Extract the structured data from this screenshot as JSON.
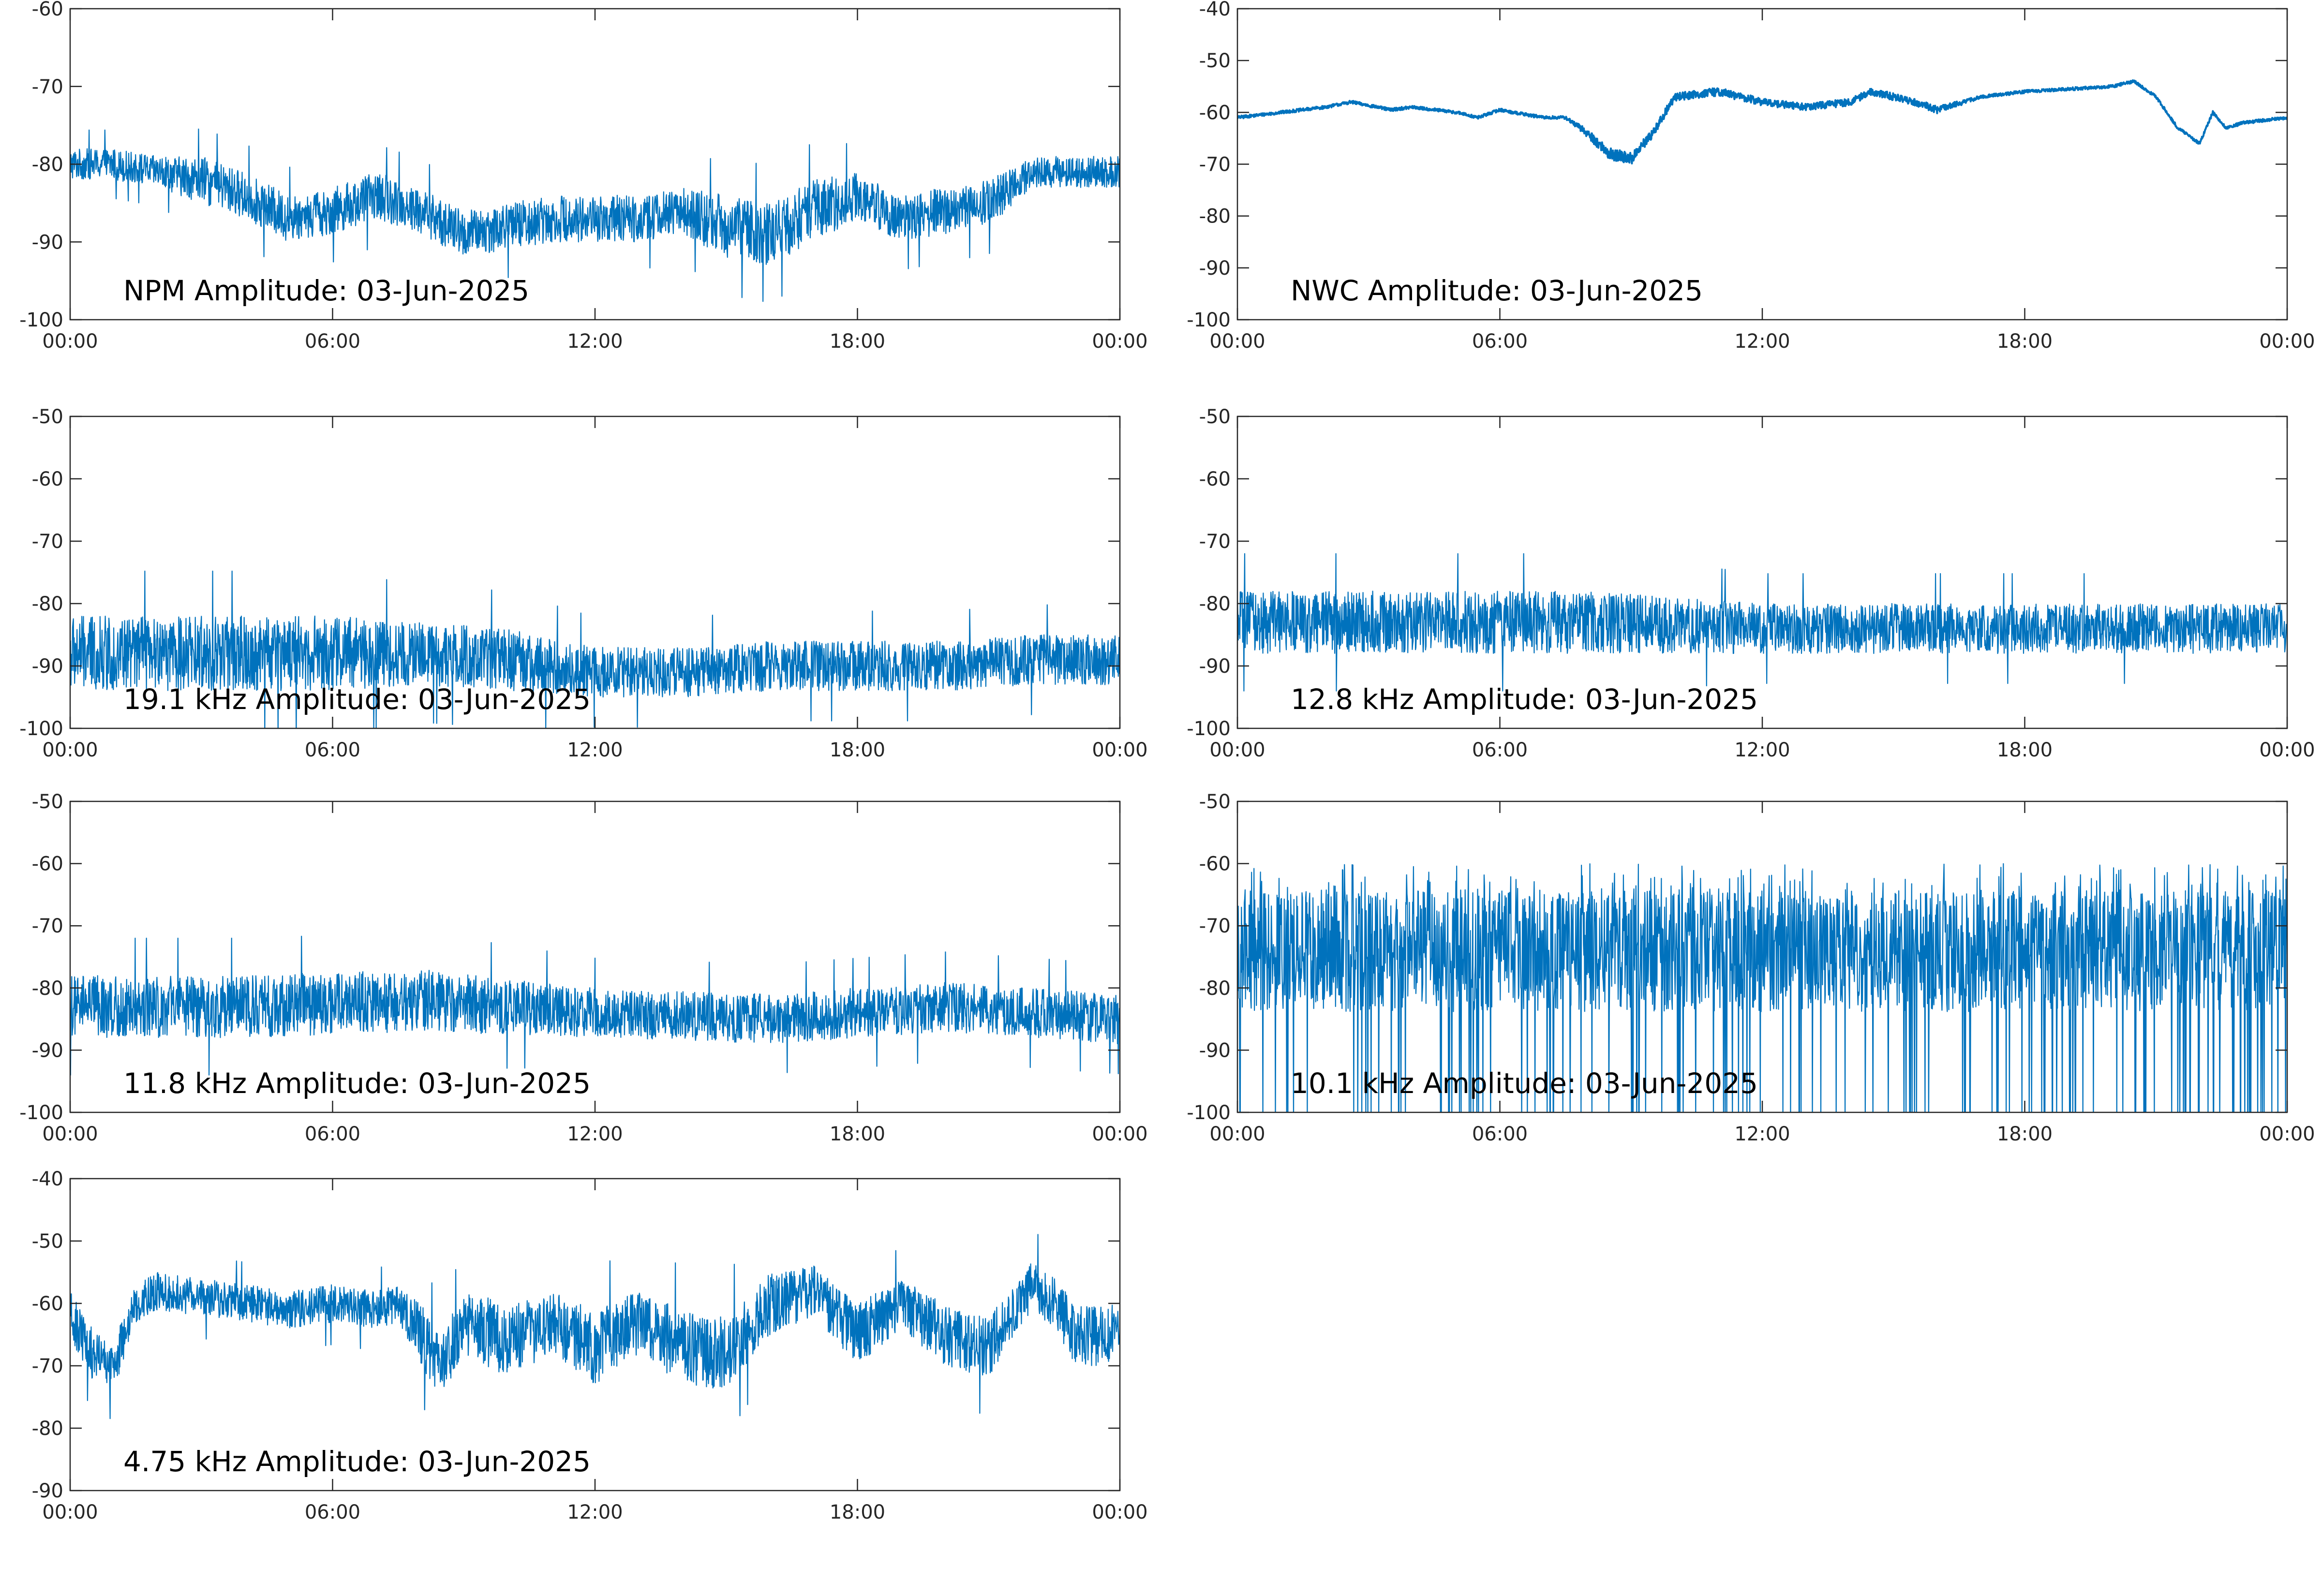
{
  "figure": {
    "line_color": "#0072bd",
    "axis_color": "#262626",
    "background": "#ffffff"
  },
  "chart_data": [
    {
      "type": "line",
      "title": "NPM Amplitude: 03-Jun-2025",
      "ylim": [
        -100,
        -60
      ],
      "yticks": [
        "-100",
        "-90",
        "-80",
        "-70",
        "-60"
      ],
      "xlim": [
        "00:00",
        "24:00"
      ],
      "xticks": [
        "00:00",
        "06:00",
        "12:00",
        "18:00",
        "00:00"
      ],
      "grid": false,
      "series": [
        {
          "style": "dense noisy band",
          "color": "#0072bd",
          "x": [
            0,
            1,
            2,
            3,
            4,
            5,
            6,
            7,
            8,
            9,
            10,
            11,
            12,
            13,
            14,
            15,
            16,
            17,
            18,
            19,
            20,
            21,
            22,
            23,
            24
          ],
          "center": [
            -80,
            -80,
            -81,
            -82,
            -84,
            -87,
            -86,
            -84,
            -86,
            -89,
            -88,
            -87,
            -87,
            -87,
            -86,
            -88,
            -89,
            -86,
            -84,
            -87,
            -86,
            -85,
            -81,
            -81,
            -81
          ],
          "spread": [
            2,
            2,
            2,
            3,
            3,
            3,
            3,
            3,
            3,
            3,
            3,
            3,
            3,
            3,
            3,
            4,
            4,
            4,
            3,
            3,
            3,
            3,
            2,
            2,
            2
          ]
        }
      ]
    },
    {
      "type": "line",
      "title": "NWC Amplitude: 03-Jun-2025",
      "ylim": [
        -100,
        -40
      ],
      "yticks": [
        "-100",
        "-90",
        "-80",
        "-70",
        "-60",
        "-50",
        "-40"
      ],
      "xlim": [
        "00:00",
        "24:00"
      ],
      "xticks": [
        "00:00",
        "06:00",
        "12:00",
        "18:00",
        "00:00"
      ],
      "grid": false,
      "series": [
        {
          "style": "thin line",
          "color": "#0072bd",
          "x": [
            0,
            1,
            2,
            2.6,
            3.5,
            4,
            5,
            5.5,
            6,
            6.3,
            7,
            7.5,
            8,
            8.5,
            9,
            9.5,
            10,
            11,
            12,
            13,
            14,
            14.5,
            15,
            15.5,
            16,
            17,
            18,
            19,
            20,
            20.5,
            21,
            21.5,
            22,
            22.3,
            22.6,
            23,
            24
          ],
          "center": [
            -61,
            -60,
            -59,
            -58,
            -59.5,
            -59,
            -60,
            -61,
            -59.5,
            -60,
            -61,
            -61,
            -64,
            -68,
            -69,
            -64,
            -57,
            -56,
            -58,
            -59,
            -58,
            -56,
            -57,
            -58,
            -59.5,
            -57,
            -56,
            -55.5,
            -55,
            -54,
            -57,
            -63,
            -66,
            -60,
            -63,
            -62,
            -61
          ],
          "spread": [
            0.3,
            0.3,
            0.3,
            0.3,
            0.3,
            0.3,
            0.3,
            0.3,
            0.3,
            0.3,
            0.3,
            0.3,
            0.8,
            1.2,
            1.2,
            0.8,
            0.8,
            0.8,
            0.7,
            0.7,
            0.7,
            0.7,
            0.7,
            0.7,
            0.7,
            0.3,
            0.3,
            0.3,
            0.3,
            0.3,
            0.3,
            0.3,
            0.3,
            0.3,
            0.3,
            0.3,
            0.3
          ]
        }
      ]
    },
    {
      "type": "line",
      "title": "19.1 kHz Amplitude: 03-Jun-2025",
      "ylim": [
        -100,
        -50
      ],
      "yticks": [
        "-100",
        "-90",
        "-80",
        "-70",
        "-60",
        "-50"
      ],
      "xlim": [
        "00:00",
        "24:00"
      ],
      "xticks": [
        "00:00",
        "06:00",
        "12:00",
        "18:00",
        "00:00"
      ],
      "grid": false,
      "series": [
        {
          "style": "dense noisy band",
          "color": "#0072bd",
          "x": [
            0,
            2,
            4,
            6,
            8,
            10,
            12,
            14,
            16,
            18,
            20,
            22,
            24
          ],
          "center": [
            -88,
            -88,
            -88,
            -88,
            -88,
            -89,
            -91,
            -91,
            -90,
            -90,
            -90,
            -89,
            -89
          ],
          "spread": [
            6,
            6,
            6,
            6,
            5,
            5,
            4,
            4,
            4,
            4,
            4,
            4,
            4
          ]
        }
      ]
    },
    {
      "type": "line",
      "title": "12.8 kHz Amplitude: 03-Jun-2025",
      "ylim": [
        -100,
        -50
      ],
      "yticks": [
        "-100",
        "-90",
        "-80",
        "-70",
        "-60",
        "-50"
      ],
      "xlim": [
        "00:00",
        "24:00"
      ],
      "xticks": [
        "00:00",
        "06:00",
        "12:00",
        "18:00",
        "00:00"
      ],
      "grid": false,
      "series": [
        {
          "style": "dense noisy band",
          "color": "#0072bd",
          "x": [
            0,
            4,
            8,
            12,
            16,
            20,
            24
          ],
          "center": [
            -83,
            -83,
            -83,
            -84,
            -84,
            -84,
            -84
          ],
          "spread": [
            5,
            5,
            5,
            4,
            4,
            4,
            4
          ]
        }
      ]
    },
    {
      "type": "line",
      "title": "11.8 kHz Amplitude: 03-Jun-2025",
      "ylim": [
        -100,
        -50
      ],
      "yticks": [
        "-100",
        "-90",
        "-80",
        "-70",
        "-60",
        "-50"
      ],
      "xlim": [
        "00:00",
        "24:00"
      ],
      "xticks": [
        "00:00",
        "06:00",
        "12:00",
        "18:00",
        "00:00"
      ],
      "grid": false,
      "series": [
        {
          "style": "dense noisy band",
          "color": "#0072bd",
          "x": [
            0,
            4,
            8,
            12,
            16,
            20,
            24
          ],
          "center": [
            -83,
            -83,
            -82,
            -84,
            -85,
            -83,
            -85
          ],
          "spread": [
            5,
            5,
            5,
            4,
            4,
            4,
            4
          ]
        }
      ]
    },
    {
      "type": "line",
      "title": "10.1 kHz Amplitude: 03-Jun-2025",
      "ylim": [
        -100,
        -50
      ],
      "yticks": [
        "-100",
        "-90",
        "-80",
        "-70",
        "-60",
        "-50"
      ],
      "xlim": [
        "00:00",
        "24:00"
      ],
      "xticks": [
        "00:00",
        "06:00",
        "12:00",
        "18:00",
        "00:00"
      ],
      "grid": false,
      "series": [
        {
          "style": "spiky band",
          "color": "#0072bd",
          "x": [
            0,
            4,
            8,
            12,
            16,
            20,
            24
          ],
          "center": [
            -74,
            -74,
            -74,
            -74,
            -74,
            -74,
            -74
          ],
          "spread": [
            7,
            7,
            7,
            7,
            7,
            7,
            7
          ]
        }
      ]
    },
    {
      "type": "line",
      "title": "4.75 kHz Amplitude: 03-Jun-2025",
      "ylim": [
        -90,
        -40
      ],
      "yticks": [
        "-90",
        "-80",
        "-70",
        "-60",
        "-50",
        "-40"
      ],
      "xlim": [
        "00:00",
        "24:00"
      ],
      "xticks": [
        "00:00",
        "06:00",
        "12:00",
        "18:00",
        "00:00"
      ],
      "grid": false,
      "series": [
        {
          "style": "dense noisy band",
          "color": "#0072bd",
          "x": [
            0,
            0.5,
            1,
            1.5,
            2,
            3,
            4,
            5,
            6,
            7,
            7.5,
            8,
            8.5,
            9,
            10,
            11,
            12,
            13,
            14,
            15,
            16,
            17,
            18,
            19,
            20,
            21,
            21.5,
            22,
            22.5,
            23,
            24
          ],
          "center": [
            -62,
            -68,
            -70,
            -60,
            -58,
            -59,
            -60,
            -61,
            -60,
            -61,
            -60,
            -65,
            -70,
            -63,
            -66,
            -63,
            -67,
            -63,
            -67,
            -68,
            -60,
            -58,
            -65,
            -60,
            -65,
            -67,
            -62,
            -57,
            -60,
            -65,
            -65
          ],
          "spread": [
            4,
            4,
            4,
            3,
            3,
            3,
            3,
            3,
            3,
            3,
            3,
            5,
            5,
            5,
            6,
            5,
            6,
            5,
            6,
            6,
            5,
            4,
            5,
            4,
            5,
            5,
            4,
            4,
            4,
            5,
            5
          ]
        }
      ]
    }
  ]
}
